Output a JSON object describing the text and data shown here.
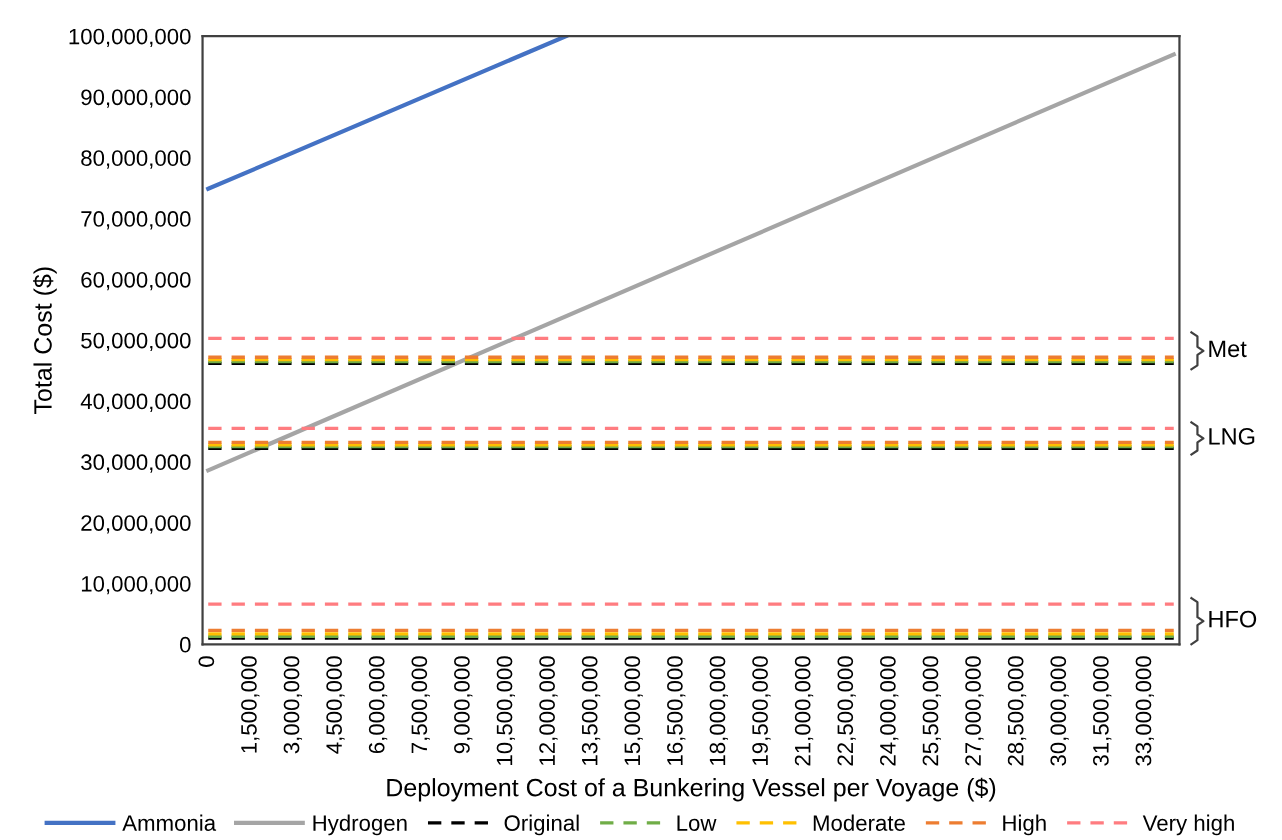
{
  "chart_data": {
    "type": "line",
    "xlabel": "Deployment Cost of a Bunkering Vessel per Voyage ($)",
    "ylabel": "Total Cost ($)",
    "xlim": [
      -200000,
      34200000
    ],
    "xticks": [
      {
        "value": 0,
        "label": "0"
      },
      {
        "value": 1500000,
        "label": "1,500,000"
      },
      {
        "value": 3000000,
        "label": "3,000,000"
      },
      {
        "value": 4500000,
        "label": "4,500,000"
      },
      {
        "value": 6000000,
        "label": "6,000,000"
      },
      {
        "value": 7500000,
        "label": "7,500,000"
      },
      {
        "value": 9000000,
        "label": "9,000,000"
      },
      {
        "value": 10500000,
        "label": "10,500,000"
      },
      {
        "value": 12000000,
        "label": "12,000,000"
      },
      {
        "value": 13500000,
        "label": "13,500,000"
      },
      {
        "value": 15000000,
        "label": "15,000,000"
      },
      {
        "value": 16500000,
        "label": "16,500,000"
      },
      {
        "value": 18000000,
        "label": "18,000,000"
      },
      {
        "value": 19500000,
        "label": "19,500,000"
      },
      {
        "value": 21000000,
        "label": "21,000,000"
      },
      {
        "value": 22500000,
        "label": "22,500,000"
      },
      {
        "value": 24000000,
        "label": "24,000,000"
      },
      {
        "value": 25500000,
        "label": "25,500,000"
      },
      {
        "value": 27000000,
        "label": "27,000,000"
      },
      {
        "value": 28500000,
        "label": "28,500,000"
      },
      {
        "value": 30000000,
        "label": "30,000,000"
      },
      {
        "value": 31500000,
        "label": "31,500,000"
      },
      {
        "value": 33000000,
        "label": "33,000,000"
      }
    ],
    "ylim": [
      0,
      100000000
    ],
    "yticks": [
      0,
      {
        "value": 10000000,
        "label": "10,000,000"
      },
      {
        "value": 20000000,
        "label": "20,000,000"
      },
      {
        "value": 30000000,
        "label": "30,000,000"
      },
      {
        "value": 40000000,
        "label": "40,000,000"
      },
      {
        "value": 50000000,
        "label": "50,000,000"
      },
      {
        "value": 60000000,
        "label": "60,000,000"
      },
      {
        "value": 70000000,
        "label": "70,000,000"
      },
      {
        "value": 80000000,
        "label": "80,000,000"
      },
      {
        "value": 90000000,
        "label": "90,000,000"
      },
      {
        "value": 100000000,
        "label": "100,000,000"
      }
    ],
    "grid": false,
    "legend": "bottom",
    "marker": "none",
    "series": [
      {
        "name": "Ammonia",
        "color": "#4472c4",
        "line_style": "solid",
        "x": [
          0,
          12600000
        ],
        "values": [
          74900000,
          100000000
        ]
      },
      {
        "name": "Hydrogen",
        "color": "#a5a5a5",
        "line_style": "solid",
        "x": [
          0,
          34000000
        ],
        "values": [
          28600000,
          97000000
        ]
      },
      {
        "name": "Original",
        "color": "#000000",
        "line_style": "dashed",
        "x": [
          0,
          34000000
        ],
        "values": [
          1000000,
          1000000
        ]
      },
      {
        "color": "#000000",
        "line_style": "dashed",
        "x": [
          0,
          34000000
        ],
        "values": [
          32200000,
          32200000
        ]
      },
      {
        "color": "#000000",
        "line_style": "dashed",
        "x": [
          0,
          34000000
        ],
        "values": [
          46200000,
          46200000
        ]
      },
      {
        "name": "Low",
        "color": "#70ad47",
        "line_style": "dashed",
        "x": [
          0,
          34000000
        ],
        "values": [
          1300000,
          1300000
        ]
      },
      {
        "color": "#70ad47",
        "line_style": "dashed",
        "x": [
          0,
          34000000
        ],
        "values": [
          32500000,
          32500000
        ]
      },
      {
        "color": "#70ad47",
        "line_style": "dashed",
        "x": [
          0,
          34000000
        ],
        "values": [
          46500000,
          46500000
        ]
      },
      {
        "name": "Moderate",
        "color": "#ffc000",
        "line_style": "dashed",
        "x": [
          0,
          34000000
        ],
        "values": [
          1700000,
          1700000
        ]
      },
      {
        "color": "#ffc000",
        "line_style": "dashed",
        "x": [
          0,
          34000000
        ],
        "values": [
          32800000,
          32800000
        ]
      },
      {
        "color": "#ffc000",
        "line_style": "dashed",
        "x": [
          0,
          34000000
        ],
        "values": [
          46800000,
          46800000
        ]
      },
      {
        "name": "High",
        "color": "#ed7d31",
        "line_style": "dashed",
        "x": [
          0,
          34000000
        ],
        "values": [
          2300000,
          2300000
        ]
      },
      {
        "color": "#ed7d31",
        "line_style": "dashed",
        "x": [
          0,
          34000000
        ],
        "values": [
          33200000,
          33200000
        ]
      },
      {
        "color": "#ed7d31",
        "line_style": "dashed",
        "x": [
          0,
          34000000
        ],
        "values": [
          47200000,
          47200000
        ]
      },
      {
        "name": "Very high",
        "color": "#ff7c80",
        "line_style": "dashed",
        "x": [
          0,
          34000000
        ],
        "values": [
          6600000,
          6600000
        ]
      },
      {
        "color": "#ff7c80",
        "line_style": "dashed",
        "x": [
          0,
          34000000
        ],
        "values": [
          35500000,
          35500000
        ]
      },
      {
        "color": "#ff7c80",
        "line_style": "dashed",
        "x": [
          0,
          34000000
        ],
        "values": [
          50300000,
          50300000
        ]
      }
    ],
    "annotations": [
      "Met",
      "LNG",
      "HFO"
    ]
  }
}
